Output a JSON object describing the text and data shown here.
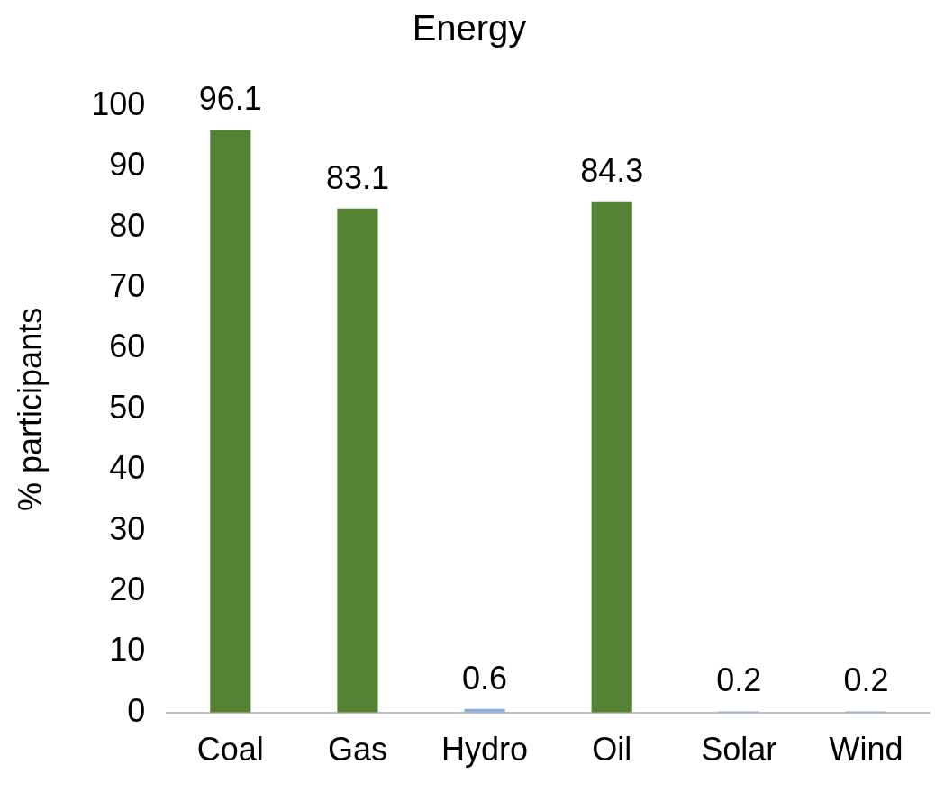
{
  "chart_data": {
    "type": "bar",
    "title": "Energy",
    "ylabel": "% participants",
    "categories": [
      "Coal",
      "Gas",
      "Hydro",
      "Oil",
      "Solar",
      "Wind"
    ],
    "values": [
      96.1,
      83.1,
      0.6,
      84.3,
      0.2,
      0.2
    ],
    "colors": [
      "#548235",
      "#548235",
      "#8faadc",
      "#548235",
      "#8faadc",
      "#8faadc"
    ],
    "ylim": [
      0,
      100
    ],
    "yticks": [
      0,
      10,
      20,
      30,
      40,
      50,
      60,
      70,
      80,
      90,
      100
    ],
    "grid": false,
    "legend": false,
    "data_labels": true
  }
}
